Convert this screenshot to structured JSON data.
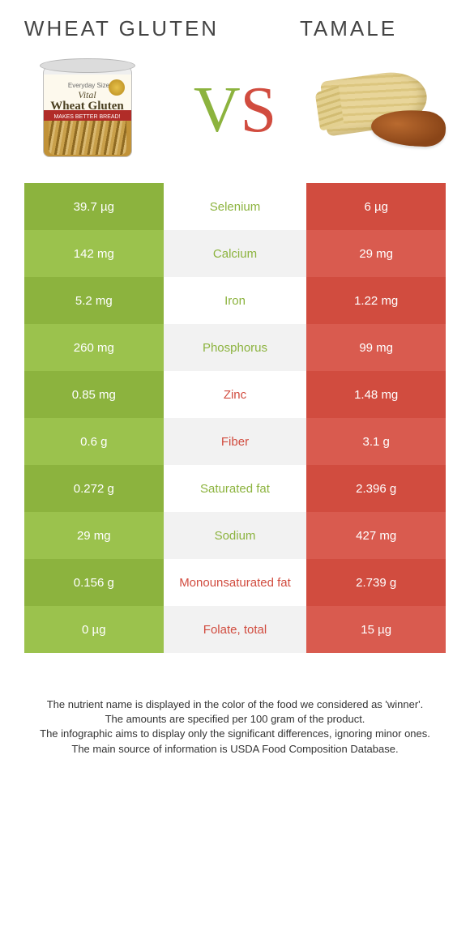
{
  "titles": {
    "left": "Wheat gluten",
    "right": "Tamale"
  },
  "vs": {
    "v": "V",
    "s": "S"
  },
  "can": {
    "brand_top": "Everyday Size",
    "word_small": "Vital",
    "word_big": "Wheat Gluten",
    "banner": "MAKES BETTER BREAD!"
  },
  "colors": {
    "left": "#8cb33e",
    "right": "#d14c3f",
    "left_alt": "#9bc24d",
    "right_alt": "#d95b4f",
    "mid_a": "#ffffff",
    "mid_b": "#f2f2f2"
  },
  "rows": [
    {
      "nutrient": "Selenium",
      "left": "39.7 µg",
      "right": "6 µg",
      "winner": "left"
    },
    {
      "nutrient": "Calcium",
      "left": "142 mg",
      "right": "29 mg",
      "winner": "left"
    },
    {
      "nutrient": "Iron",
      "left": "5.2 mg",
      "right": "1.22 mg",
      "winner": "left"
    },
    {
      "nutrient": "Phosphorus",
      "left": "260 mg",
      "right": "99 mg",
      "winner": "left"
    },
    {
      "nutrient": "Zinc",
      "left": "0.85 mg",
      "right": "1.48 mg",
      "winner": "right"
    },
    {
      "nutrient": "Fiber",
      "left": "0.6 g",
      "right": "3.1 g",
      "winner": "right"
    },
    {
      "nutrient": "Saturated fat",
      "left": "0.272 g",
      "right": "2.396 g",
      "winner": "left"
    },
    {
      "nutrient": "Sodium",
      "left": "29 mg",
      "right": "427 mg",
      "winner": "left"
    },
    {
      "nutrient": "Monounsaturated fat",
      "left": "0.156 g",
      "right": "2.739 g",
      "winner": "right"
    },
    {
      "nutrient": "Folate, total",
      "left": "0 µg",
      "right": "15 µg",
      "winner": "right"
    }
  ],
  "footer": [
    "The nutrient name is displayed in the color of the food we considered as 'winner'.",
    "The amounts are specified per 100 gram of the product.",
    "The infographic aims to display only the significant differences, ignoring minor ones.",
    "The main source of information is USDA Food Composition Database."
  ]
}
